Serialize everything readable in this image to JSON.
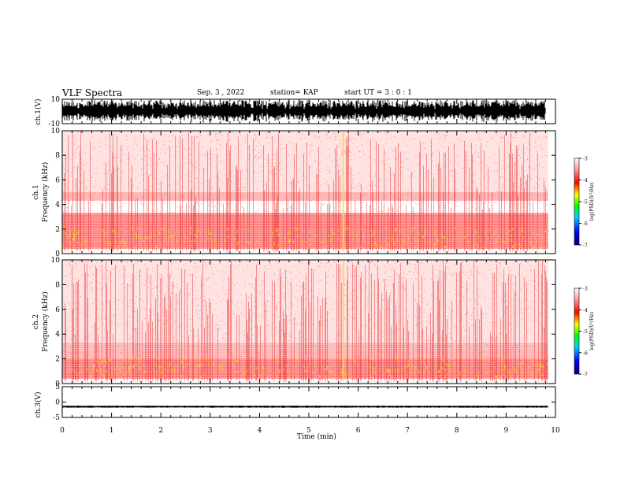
{
  "header": {
    "title": "VLF Spectra",
    "date": "Sep. 3  , 2022",
    "station": "station= KAP",
    "start": "start  UT  =   3  : 0   : 1"
  },
  "chart_data": [
    {
      "type": "line",
      "panel": "ch1-waveform",
      "ylabel": "ch.1(V)",
      "ylim": [
        -10,
        10
      ],
      "yticks": [
        "10",
        "-10"
      ],
      "xlim": [
        0,
        10
      ],
      "note_data": "saturated broadband waveform spanning full range"
    },
    {
      "type": "heatmap",
      "panel": "ch1-spectrogram",
      "ylabel": "ch.1\nFrequency  (kHz)",
      "ylim": [
        0,
        10
      ],
      "yticks": [
        "0",
        "2",
        "4",
        "6",
        "8",
        "10"
      ],
      "xlim": [
        0,
        9.85
      ],
      "colorbar": {
        "label": "log(PSD)(V²/Hz)",
        "range": [
          -7,
          -3
        ],
        "ticks": [
          "-3",
          "-4",
          "-5",
          "-6",
          "-7"
        ],
        "colors": [
          "#000080",
          "#0000ff",
          "#00c8ff",
          "#00ff00",
          "#ffff00",
          "#ff0000",
          "#ffffff"
        ]
      },
      "bands_khz": [
        {
          "lo": 0.4,
          "hi": 3.3,
          "level": "strong"
        },
        {
          "lo": 4.3,
          "hi": 5.0,
          "level": "moderate"
        },
        {
          "lo": 5.0,
          "hi": 10.0,
          "level": "weak"
        }
      ],
      "bright_event_min": 5.7
    },
    {
      "type": "heatmap",
      "panel": "ch2-spectrogram",
      "ylabel": "ch.2\nFrequency  (kHz)",
      "ylim": [
        0,
        10
      ],
      "yticks": [
        "0",
        "2",
        "4",
        "6",
        "8",
        "10"
      ],
      "xlim": [
        0,
        9.85
      ],
      "colorbar": {
        "label": "log(PSD)(V²/Hz)",
        "range": [
          -7,
          -3
        ],
        "ticks": [
          "-3",
          "-4",
          "-5",
          "-6",
          "-7"
        ]
      },
      "bands_khz": [
        {
          "lo": 0.4,
          "hi": 2.0,
          "level": "strong"
        },
        {
          "lo": 2.0,
          "hi": 3.3,
          "level": "moderate"
        },
        {
          "lo": 3.3,
          "hi": 10.0,
          "level": "weak"
        }
      ],
      "bright_event_min": 5.7
    },
    {
      "type": "line",
      "panel": "ch3-waveform",
      "ylabel": "ch.3(V)",
      "ylim": [
        -5,
        5
      ],
      "yticks": [
        "5",
        "0",
        "-5"
      ],
      "xlabel": "Time  (min)",
      "xlim": [
        0,
        10
      ],
      "xticks": [
        "0",
        "1",
        "2",
        "3",
        "4",
        "5",
        "6",
        "7",
        "8",
        "9",
        "10"
      ],
      "mean_v": -1.5,
      "noise_v": 0.35
    }
  ]
}
